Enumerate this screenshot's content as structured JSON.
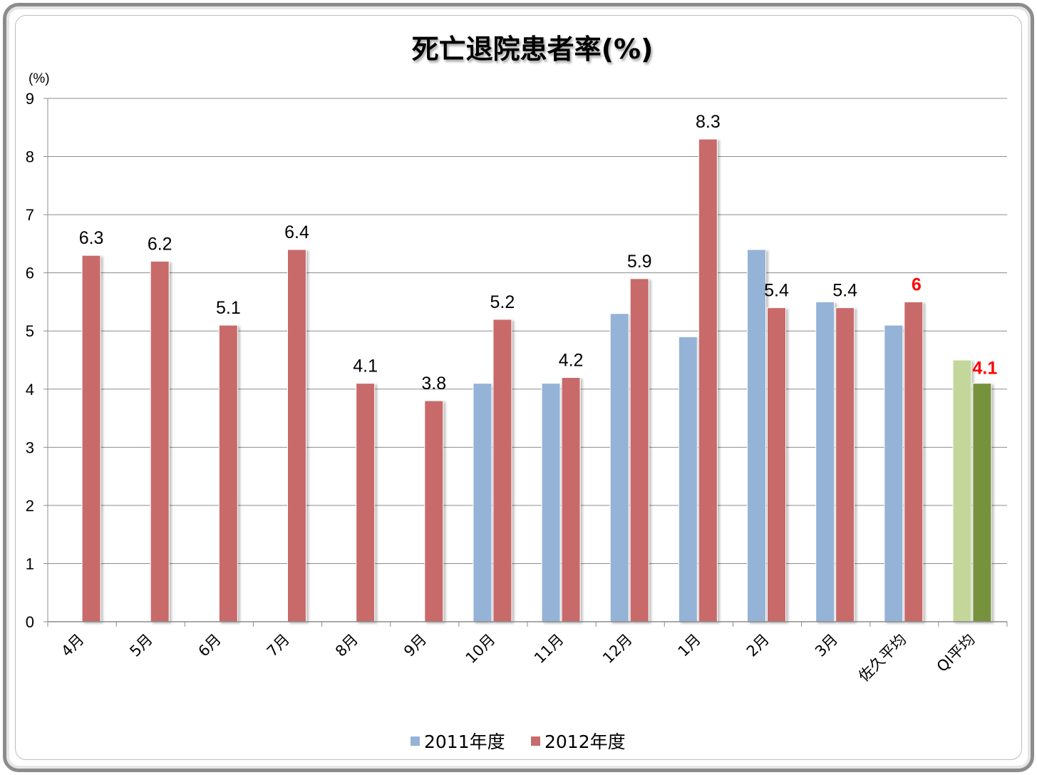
{
  "chart_data": {
    "type": "bar",
    "title": "死亡退院患者率(%)",
    "ylabel": "(%)",
    "ylim": [
      0,
      9
    ],
    "yticks": [
      0,
      1,
      2,
      3,
      4,
      5,
      6,
      7,
      8,
      9
    ],
    "grid": true,
    "legend_position": "bottom",
    "categories": [
      "4月",
      "5月",
      "6月",
      "7月",
      "8月",
      "9月",
      "10月",
      "11月",
      "12月",
      "1月",
      "2月",
      "3月",
      "佐久平均",
      "QI平均"
    ],
    "series": [
      {
        "name": "2011年度",
        "values": [
          null,
          null,
          null,
          null,
          null,
          null,
          4.1,
          4.1,
          5.3,
          4.9,
          6.4,
          5.5,
          5.1,
          4.5
        ]
      },
      {
        "name": "2012年度",
        "values": [
          6.3,
          6.2,
          5.1,
          6.4,
          4.1,
          3.8,
          5.2,
          4.2,
          5.9,
          8.3,
          5.4,
          5.4,
          5.5,
          4.1
        ]
      }
    ],
    "data_labels": [
      "6.3",
      "6.2",
      "5.1",
      "6.4",
      "4.1",
      "3.8",
      "5.2",
      "4.2",
      "5.9",
      "8.3",
      "5.4",
      "5.4",
      "6",
      "4.1"
    ],
    "colors": {
      "2011": "#95b3d7",
      "2012": "#c96b6b",
      "qi_2011": "#c4d79b",
      "qi_2012": "#76923c",
      "highlight_label": "#ff0000"
    }
  }
}
